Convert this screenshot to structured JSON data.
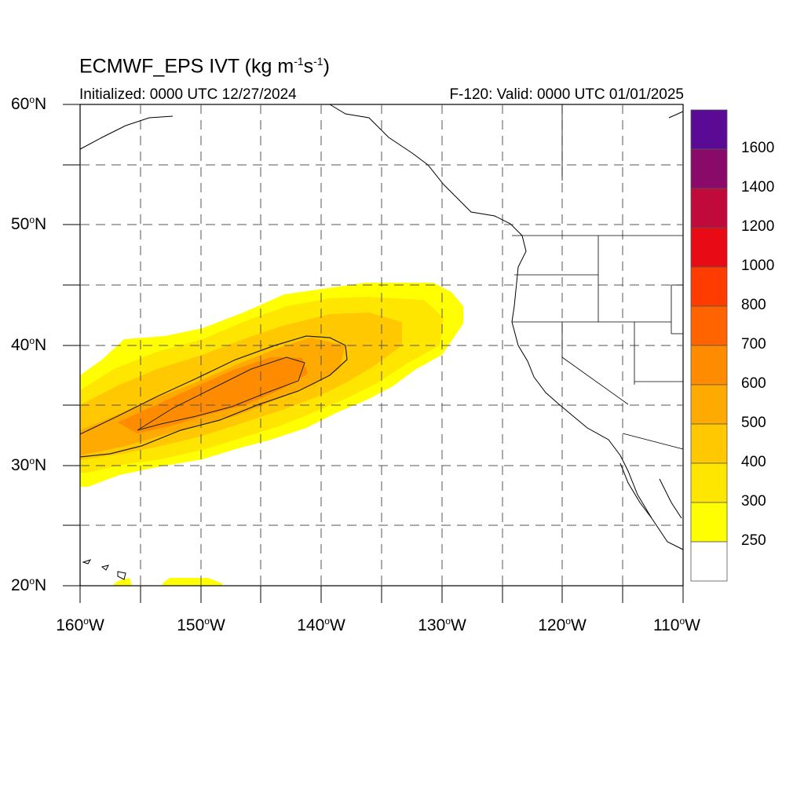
{
  "title": {
    "main": "ECMWF_EPS IVT (kg m",
    "exp1": "-1",
    "mid": "s",
    "exp2": "-1",
    "close": ")",
    "initialized": "Initialized: 0000 UTC 12/27/2024",
    "valid": "F-120: Valid: 0000 UTC 01/01/2025"
  },
  "lat_labels": [
    "60",
    "50",
    "40",
    "30",
    "20"
  ],
  "lat_suffix": "N",
  "lon_labels": [
    "160",
    "150",
    "140",
    "130",
    "120",
    "110"
  ],
  "lon_suffix": "W",
  "colorbar": {
    "labels": [
      "1600",
      "1400",
      "1200",
      "1000",
      "800",
      "700",
      "600",
      "500",
      "400",
      "300",
      "250"
    ],
    "colors": [
      "#5a0a94",
      "#8a0a6a",
      "#c00a3c",
      "#e80a14",
      "#ff3c00",
      "#ff6400",
      "#ff8c00",
      "#ffaa00",
      "#ffc800",
      "#ffe600",
      "#ffff00",
      "#ffffff"
    ]
  }
}
